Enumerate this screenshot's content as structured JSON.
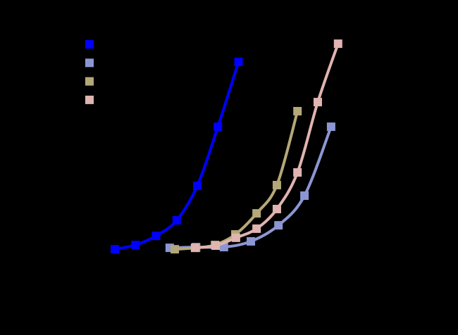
{
  "chart_data": {
    "type": "line",
    "xlim": [
      0,
      10
    ],
    "ylim": [
      0,
      100
    ],
    "series": [
      {
        "color": "#0000ff",
        "x": [
          1.4,
          2.05,
          2.7,
          3.35,
          4.0,
          4.65,
          5.3
        ],
        "values": [
          7.6,
          9.4,
          13.2,
          19.7,
          34.1,
          58.8,
          85.9
        ]
      },
      {
        "color": "#8c96d2",
        "x": [
          3.13,
          3.96,
          4.84,
          5.69,
          6.56,
          7.38,
          8.22
        ],
        "values": [
          8.2,
          8.5,
          8.5,
          10.9,
          17.6,
          30.0,
          58.8
        ]
      },
      {
        "color": "#b4a878",
        "x": [
          3.29,
          3.96,
          4.56,
          5.2,
          5.87,
          6.51,
          7.16
        ],
        "values": [
          7.6,
          8.2,
          9.4,
          13.8,
          22.6,
          34.4,
          65.3
        ]
      },
      {
        "color": "#e0b4b0",
        "x": [
          3.93,
          4.58,
          5.22,
          5.87,
          6.51,
          7.16,
          7.8,
          8.44
        ],
        "values": [
          8.2,
          9.1,
          12.4,
          16.2,
          24.4,
          39.7,
          69.1,
          93.5
        ]
      }
    ]
  }
}
